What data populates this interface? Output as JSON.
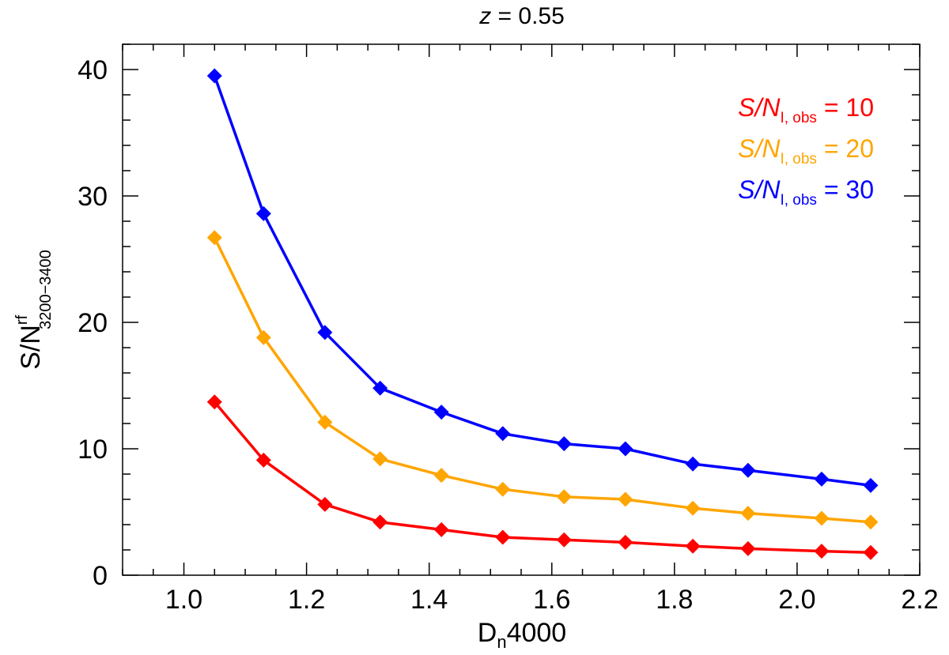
{
  "chart_data": {
    "type": "line",
    "title": {
      "italic": "z",
      "rest": " = 0.55"
    },
    "xlabel": {
      "main": "D",
      "sub": "n",
      "rest": "4000"
    },
    "ylabel": {
      "main": "S/N",
      "sup": "rf",
      "sub": "3200−3400"
    },
    "xlim": [
      0.9,
      2.2
    ],
    "ylim": [
      0,
      42
    ],
    "xticks": [
      1.0,
      1.2,
      1.4,
      1.6,
      1.8,
      2.0,
      2.2
    ],
    "xtick_labels": [
      "1.0",
      "1.2",
      "1.4",
      "1.6",
      "1.8",
      "2.0",
      "2.2"
    ],
    "yticks": [
      0,
      10,
      20,
      30,
      40
    ],
    "ytick_labels": [
      "0",
      "10",
      "20",
      "30",
      "40"
    ],
    "x": [
      1.05,
      1.13,
      1.23,
      1.32,
      1.42,
      1.52,
      1.62,
      1.72,
      1.83,
      1.92,
      2.04,
      2.12
    ],
    "legend_position": "top-right",
    "series": [
      {
        "name": "S/N I, obs = 10",
        "label_main": "S/N",
        "label_sub": "I, obs",
        "label_rest": " = 10",
        "color": "#ff0000",
        "values": [
          13.7,
          9.1,
          5.6,
          4.2,
          3.6,
          3.0,
          2.8,
          2.6,
          2.3,
          2.1,
          1.9,
          1.8
        ]
      },
      {
        "name": "S/N I, obs = 20",
        "label_main": "S/N",
        "label_sub": "I, obs",
        "label_rest": " = 20",
        "color": "#ffa500",
        "values": [
          26.7,
          18.8,
          12.1,
          9.2,
          7.9,
          6.8,
          6.2,
          6.0,
          5.3,
          4.9,
          4.5,
          4.2
        ]
      },
      {
        "name": "S/N I, obs = 30",
        "label_main": "S/N",
        "label_sub": "I, obs",
        "label_rest": " = 30",
        "color": "#0000ff",
        "values": [
          39.5,
          28.6,
          19.2,
          14.8,
          12.9,
          11.2,
          10.4,
          10.0,
          8.8,
          8.3,
          7.6,
          7.1
        ]
      }
    ]
  }
}
